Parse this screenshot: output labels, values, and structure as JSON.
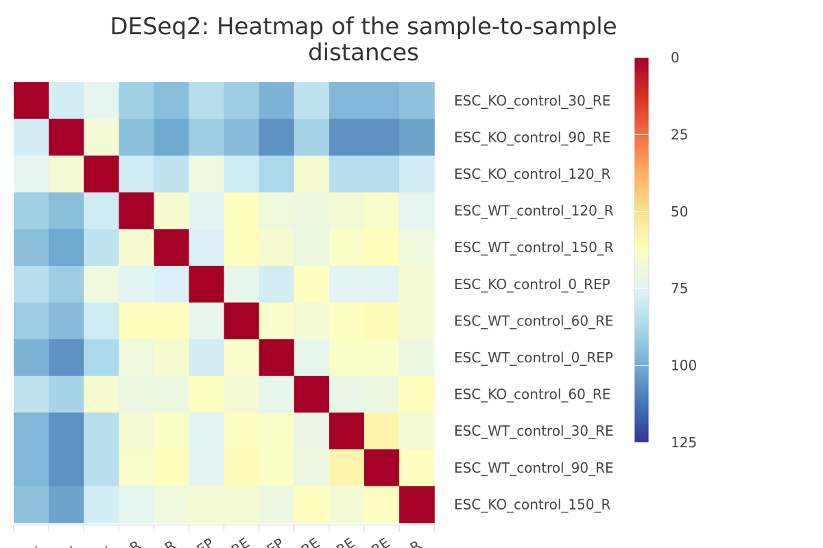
{
  "chart_data": {
    "type": "heatmap",
    "title": "DESeq2: Heatmap of the sample-to-sample distances",
    "title_lines": [
      "DESeq2: Heatmap of the sample-to-sample",
      "distances"
    ],
    "samples": [
      "ESC_KO_control_30_RE",
      "ESC_KO_control_90_RE",
      "ESC_KO_control_120_R",
      "ESC_WT_control_120_R",
      "ESC_WT_control_150_R",
      "ESC_KO_control_0_REP",
      "ESC_WT_control_60_RE",
      "ESC_WT_control_0_REP",
      "ESC_KO_control_60_RE",
      "ESC_WT_control_30_RE",
      "ESC_WT_control_90_RE",
      "ESC_KO_control_150_R"
    ],
    "column_tick_labels": [
      "…",
      "…",
      "…",
      "R",
      "R",
      "EP",
      "RE",
      "EP",
      "RE",
      "RE",
      "RE",
      "R"
    ],
    "values": [
      [
        0,
        78,
        73,
        90,
        95,
        85,
        91,
        98,
        83,
        97,
        97,
        94
      ],
      [
        78,
        0,
        67,
        95,
        101,
        91,
        96,
        106,
        89,
        106,
        106,
        102
      ],
      [
        73,
        67,
        0,
        79,
        83,
        69,
        79,
        87,
        66,
        85,
        85,
        78
      ],
      [
        90,
        95,
        79,
        0,
        66,
        74,
        62,
        69,
        70,
        67,
        65,
        73
      ],
      [
        95,
        101,
        83,
        66,
        0,
        76,
        62,
        66,
        70,
        64,
        62,
        69
      ],
      [
        85,
        91,
        69,
        74,
        76,
        0,
        72,
        78,
        63,
        74,
        74,
        67
      ],
      [
        91,
        96,
        79,
        62,
        62,
        72,
        0,
        65,
        67,
        63,
        61,
        67
      ],
      [
        98,
        106,
        87,
        69,
        66,
        78,
        65,
        0,
        72,
        64,
        64,
        70
      ],
      [
        83,
        89,
        66,
        70,
        70,
        63,
        67,
        72,
        0,
        71,
        70,
        62
      ],
      [
        97,
        106,
        85,
        67,
        64,
        74,
        63,
        64,
        71,
        0,
        58,
        67
      ],
      [
        97,
        106,
        85,
        65,
        62,
        74,
        61,
        64,
        70,
        58,
        0,
        63
      ],
      [
        94,
        102,
        78,
        73,
        69,
        67,
        67,
        70,
        62,
        67,
        63,
        0
      ]
    ],
    "colorscale": {
      "min": 0,
      "max": 125,
      "ticks": [
        0,
        25,
        50,
        75,
        100,
        125
      ],
      "colors": [
        "#a50026",
        "#d73027",
        "#f46d43",
        "#fdae61",
        "#fee090",
        "#ffffbf",
        "#e0f3f8",
        "#abd9e9",
        "#74add1",
        "#4575b4",
        "#313695"
      ]
    },
    "legend_placement": "right",
    "grid": false
  }
}
